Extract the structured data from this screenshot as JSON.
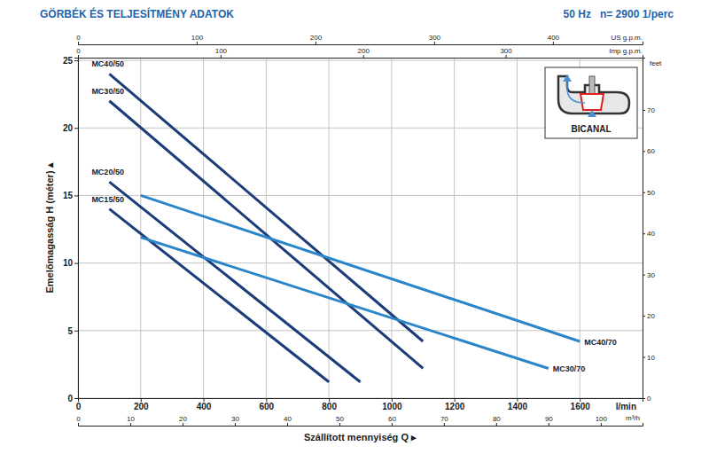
{
  "chart_data": {
    "type": "line",
    "title": "GÖRBÉK ÉS TELJESÍTMÉNY ADATOK",
    "subtitle": "50 Hz   n= 2900 1/perc",
    "xlabel": "Szállított mennyiség Q ▸",
    "ylabel": "Emelőmagasság H (méter) ▴",
    "x_unit": "l/min",
    "y2label": "feet",
    "x2label": "m³/h",
    "x3label": "US g.p.m.",
    "x4label": "Imp g.p.m.",
    "xlim": [
      0,
      1800
    ],
    "xticks": [
      0,
      200,
      400,
      600,
      800,
      1000,
      1200,
      1400,
      1600
    ],
    "ylim": [
      0,
      25.2
    ],
    "yticks": [
      0,
      5,
      10,
      15,
      20,
      25
    ],
    "y2lim": [
      0,
      82.68
    ],
    "y2ticks": [
      0,
      10,
      20,
      30,
      40,
      50,
      60,
      70
    ],
    "x2lim": [
      0,
      108
    ],
    "x2ticks": [
      0,
      10,
      20,
      30,
      40,
      50,
      60,
      70,
      80,
      90,
      100
    ],
    "x3lim": [
      0,
      475.5
    ],
    "x3ticks": [
      0,
      100,
      200,
      300,
      400
    ],
    "x4lim": [
      0,
      396
    ],
    "x4ticks": [
      0,
      100,
      200,
      300
    ],
    "grid": true,
    "annotations": [
      "BICANAL"
    ],
    "series": [
      {
        "name": "MC40/50",
        "color": "#1b3c78",
        "x": [
          100,
          1100
        ],
        "values": [
          24,
          4.2
        ]
      },
      {
        "name": "MC30/50",
        "color": "#1b3c78",
        "x": [
          100,
          1100
        ],
        "values": [
          22,
          2.2
        ]
      },
      {
        "name": "MC20/50",
        "color": "#1b3c78",
        "x": [
          100,
          900
        ],
        "values": [
          16,
          1.2
        ]
      },
      {
        "name": "MC15/50",
        "color": "#1b3c78",
        "x": [
          100,
          800
        ],
        "values": [
          14,
          1.2
        ]
      },
      {
        "name": "MC40/70",
        "color": "#2a86c8",
        "x": [
          200,
          1600
        ],
        "values": [
          15,
          4.2
        ]
      },
      {
        "name": "MC30/70",
        "color": "#2a86c8",
        "x": [
          200,
          1500
        ],
        "values": [
          11.9,
          2.2
        ]
      }
    ]
  }
}
